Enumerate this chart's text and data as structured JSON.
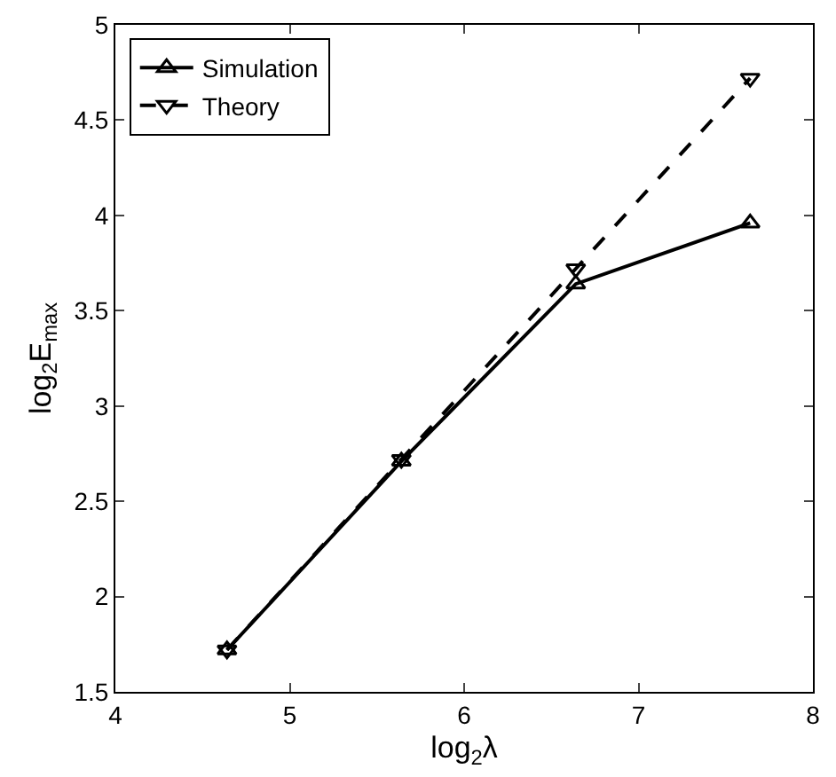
{
  "chart_data": {
    "type": "line",
    "xlabel": "log$_{2}$λ",
    "ylabel": "log$_{2}$E$_{max}$",
    "x": [
      4.64,
      5.64,
      6.64,
      7.64
    ],
    "series": [
      {
        "name": "Simulation",
        "color": "#000000",
        "values": [
          1.72,
          2.71,
          3.64,
          3.96
        ],
        "marker": "triangle",
        "line_style": "solid"
      },
      {
        "name": "Theory",
        "color": "#000000",
        "values": [
          1.72,
          2.72,
          3.72,
          4.72
        ],
        "marker": "triangle-down",
        "line_style": "dashed"
      }
    ],
    "xlim": [
      4,
      8
    ],
    "xticks": [
      4,
      5,
      6,
      7,
      8
    ],
    "ylim": [
      1.5,
      5
    ],
    "yticks": [
      1.5,
      2,
      2.5,
      3,
      3.5,
      4,
      4.5,
      5
    ],
    "grid": false,
    "legend": "top left"
  }
}
